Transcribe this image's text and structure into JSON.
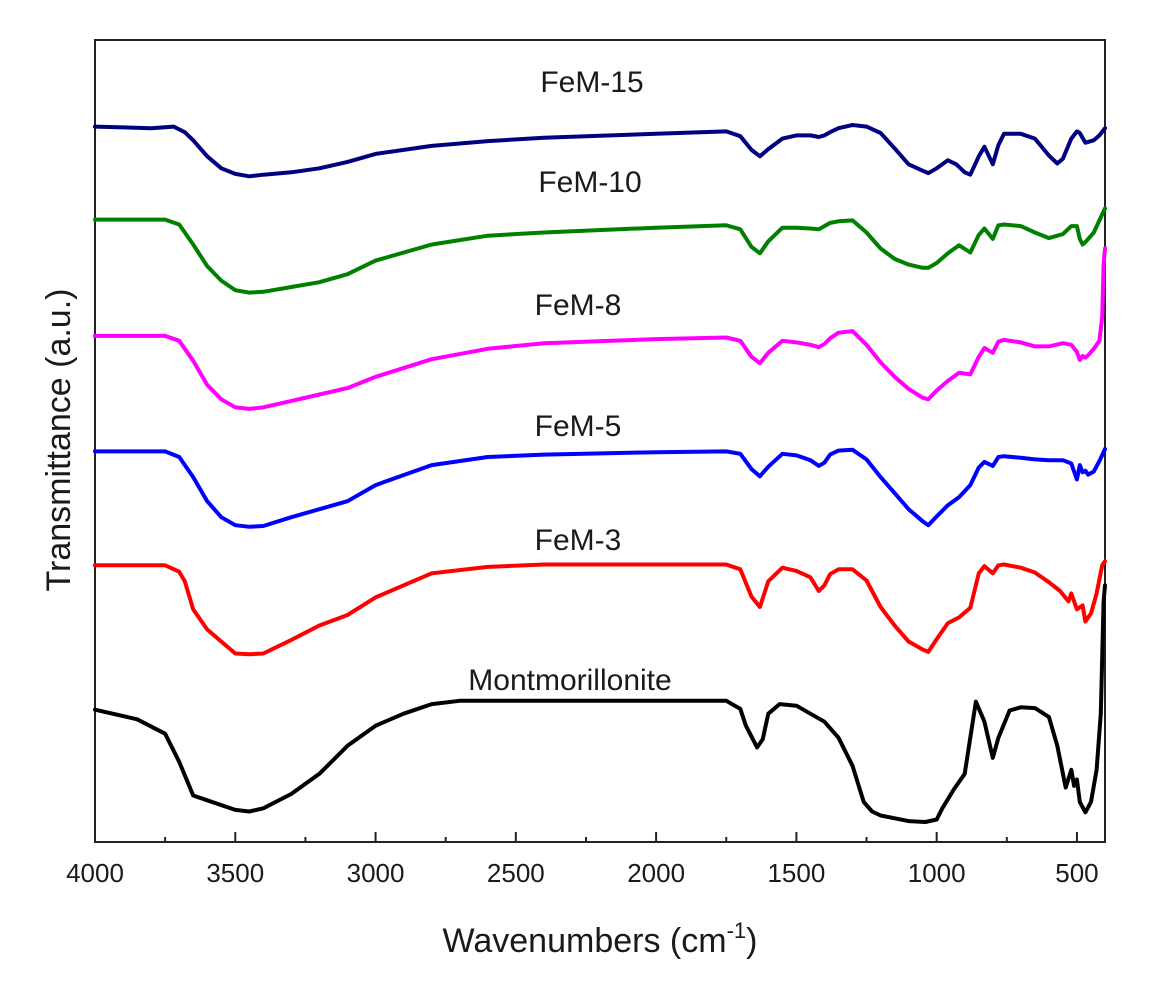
{
  "chart_data": {
    "type": "line",
    "title": "",
    "xlabel": "Wavenumbers (cm",
    "xlabel_sup": "-1",
    "xlabel_close": ")",
    "ylabel": "Transmittance (a.u.)",
    "xlim": [
      4000,
      400
    ],
    "ylim": [
      0,
      100
    ],
    "x_ticks": [
      4000,
      3500,
      3000,
      2500,
      2000,
      1500,
      1000,
      500
    ],
    "x_tick_labels": [
      "4000",
      "3500",
      "3000",
      "2500",
      "2000",
      "1500",
      "1000",
      "500"
    ],
    "x_minor_ticks": [
      3750,
      3250,
      2750,
      2250,
      1750,
      1250,
      750
    ],
    "grid": false,
    "series": [
      {
        "name": "Montmorillonite",
        "color": "#000000",
        "x": [
          4000,
          3850,
          3750,
          3700,
          3650,
          3600,
          3500,
          3450,
          3400,
          3300,
          3200,
          3100,
          3000,
          2900,
          2800,
          2700,
          2500,
          2000,
          1750,
          1700,
          1680,
          1640,
          1620,
          1600,
          1560,
          1500,
          1400,
          1350,
          1300,
          1260,
          1230,
          1200,
          1100,
          1040,
          1000,
          980,
          940,
          900,
          860,
          830,
          800,
          780,
          740,
          700,
          650,
          600,
          570,
          540,
          520,
          510,
          500,
          490,
          470,
          450,
          430,
          415,
          405,
          400
        ],
        "y": [
          16.5,
          15.3,
          13.5,
          10,
          5.8,
          5.2,
          4,
          3.8,
          4.2,
          6,
          8.5,
          12,
          14.5,
          16,
          17.2,
          17.6,
          17.6,
          17.6,
          17.6,
          16.6,
          14.5,
          11.8,
          12.8,
          16,
          17.2,
          17,
          15,
          13,
          9.5,
          5,
          3.8,
          3.3,
          2.6,
          2.5,
          2.8,
          4.2,
          6.5,
          8.5,
          17.5,
          15,
          10.5,
          13,
          16.4,
          16.8,
          16.7,
          15.6,
          12,
          6.8,
          9,
          7,
          7.8,
          5,
          3.7,
          5,
          9,
          16,
          30,
          32
        ]
      },
      {
        "name": "FeM-3",
        "color": "#ff0000",
        "x": [
          4000,
          3750,
          3700,
          3680,
          3650,
          3600,
          3500,
          3450,
          3400,
          3300,
          3200,
          3100,
          3000,
          2800,
          2600,
          2400,
          2000,
          1750,
          1700,
          1660,
          1630,
          1600,
          1550,
          1500,
          1450,
          1420,
          1400,
          1380,
          1350,
          1300,
          1250,
          1200,
          1150,
          1100,
          1050,
          1030,
          1000,
          960,
          920,
          880,
          850,
          830,
          800,
          780,
          760,
          700,
          650,
          600,
          560,
          530,
          520,
          500,
          480,
          470,
          450,
          430,
          410,
          400
        ],
        "y": [
          34.5,
          34.5,
          33.7,
          32.5,
          29,
          26.5,
          23.5,
          23.4,
          23.5,
          25.2,
          27,
          28.3,
          30.5,
          33.5,
          34.3,
          34.6,
          34.6,
          34.6,
          34,
          30.6,
          29.3,
          32.5,
          34.2,
          33.8,
          33,
          31.3,
          32,
          33.4,
          34,
          34,
          32.6,
          29.3,
          27,
          25,
          24,
          23.7,
          25.3,
          27.3,
          28,
          29.2,
          33.5,
          34.4,
          33.5,
          34.5,
          34.6,
          34.2,
          33.6,
          32.4,
          31.3,
          30,
          31,
          29,
          29.5,
          27.5,
          28.5,
          31,
          34.5,
          35
        ]
      },
      {
        "name": "FeM-5",
        "color": "#0000ff",
        "x": [
          4000,
          3750,
          3700,
          3650,
          3600,
          3550,
          3500,
          3450,
          3400,
          3300,
          3200,
          3100,
          3000,
          2800,
          2600,
          2400,
          2000,
          1750,
          1700,
          1660,
          1630,
          1600,
          1550,
          1500,
          1450,
          1420,
          1400,
          1380,
          1350,
          1300,
          1250,
          1200,
          1150,
          1100,
          1050,
          1030,
          1000,
          960,
          920,
          880,
          850,
          830,
          800,
          780,
          760,
          700,
          650,
          600,
          550,
          520,
          500,
          490,
          480,
          470,
          460,
          440,
          420,
          400
        ],
        "y": [
          48.7,
          48.7,
          48,
          45.5,
          42.5,
          40.5,
          39.5,
          39.3,
          39.4,
          40.5,
          41.5,
          42.5,
          44.5,
          47,
          48,
          48.3,
          48.6,
          48.7,
          48.4,
          46.5,
          45.6,
          46.8,
          48.4,
          48.2,
          47.6,
          46.9,
          47.3,
          48.3,
          48.8,
          48.9,
          47.7,
          45.5,
          43.5,
          41.5,
          40,
          39.5,
          40.6,
          42,
          43,
          44.5,
          46.7,
          47.4,
          46.9,
          48,
          48.1,
          47.9,
          47.7,
          47.6,
          47.6,
          47.2,
          45.2,
          47,
          46.1,
          46.3,
          45.8,
          46.2,
          47.5,
          49
        ]
      },
      {
        "name": "FeM-8",
        "color": "#ff00ff",
        "x": [
          4000,
          3750,
          3700,
          3650,
          3600,
          3550,
          3500,
          3450,
          3400,
          3300,
          3200,
          3100,
          3000,
          2800,
          2600,
          2400,
          2000,
          1750,
          1700,
          1660,
          1630,
          1600,
          1550,
          1500,
          1450,
          1420,
          1400,
          1380,
          1350,
          1300,
          1250,
          1200,
          1150,
          1100,
          1050,
          1030,
          1000,
          960,
          920,
          880,
          850,
          830,
          800,
          780,
          760,
          700,
          650,
          600,
          550,
          520,
          500,
          490,
          480,
          470,
          460,
          440,
          420,
          410,
          405,
          400
        ],
        "y": [
          63.1,
          63.1,
          62.5,
          60,
          57,
          55.2,
          54.2,
          54,
          54.2,
          55,
          55.8,
          56.6,
          58,
          60.2,
          61.5,
          62.2,
          62.7,
          62.9,
          62.5,
          60.5,
          59.7,
          61,
          62.5,
          62.3,
          62,
          61.7,
          62.1,
          62.8,
          63.5,
          63.7,
          62,
          59.8,
          58,
          56.5,
          55.4,
          55.2,
          56.3,
          57.5,
          58.5,
          58.3,
          60.5,
          61.6,
          61,
          62.4,
          62.6,
          62.3,
          61.8,
          61.8,
          62.2,
          62,
          61.1,
          60.1,
          60.6,
          60.4,
          60.7,
          61.5,
          62.5,
          65.5,
          72,
          74
        ]
      },
      {
        "name": "FeM-10",
        "color": "#008000",
        "x": [
          4000,
          3750,
          3700,
          3650,
          3600,
          3550,
          3500,
          3450,
          3400,
          3300,
          3200,
          3100,
          3000,
          2800,
          2600,
          2400,
          2000,
          1750,
          1700,
          1660,
          1630,
          1600,
          1550,
          1500,
          1450,
          1420,
          1400,
          1380,
          1350,
          1300,
          1250,
          1200,
          1150,
          1100,
          1050,
          1030,
          1000,
          960,
          920,
          880,
          850,
          830,
          800,
          780,
          760,
          700,
          650,
          600,
          550,
          520,
          500,
          490,
          480,
          470,
          460,
          440,
          420,
          400
        ],
        "y": [
          77.6,
          77.6,
          77,
          74.5,
          71.8,
          70,
          68.8,
          68.5,
          68.6,
          69.2,
          69.8,
          70.8,
          72.5,
          74.5,
          75.6,
          76,
          76.6,
          76.9,
          76.4,
          74.2,
          73.4,
          74.9,
          76.6,
          76.6,
          76.5,
          76.4,
          76.8,
          77.2,
          77.4,
          77.5,
          76,
          74,
          72.7,
          72,
          71.6,
          71.6,
          72.2,
          73.4,
          74.4,
          73.5,
          75.7,
          76.5,
          75.2,
          76.9,
          77,
          76.8,
          76,
          75.3,
          75.8,
          76.8,
          76.8,
          75.2,
          74.5,
          74.8,
          75.2,
          76,
          77.5,
          79
        ]
      },
      {
        "name": "FeM-15",
        "color": "#000080",
        "x": [
          4000,
          3800,
          3720,
          3680,
          3650,
          3600,
          3550,
          3500,
          3450,
          3400,
          3300,
          3200,
          3100,
          3000,
          2800,
          2600,
          2400,
          2000,
          1750,
          1700,
          1660,
          1630,
          1600,
          1550,
          1500,
          1450,
          1420,
          1400,
          1380,
          1350,
          1300,
          1250,
          1200,
          1150,
          1100,
          1050,
          1030,
          1000,
          960,
          930,
          900,
          880,
          850,
          830,
          800,
          780,
          760,
          700,
          650,
          600,
          570,
          550,
          520,
          500,
          490,
          470,
          440,
          420,
          400
        ],
        "y": [
          89.2,
          89,
          89.2,
          88.5,
          87.5,
          85.5,
          84,
          83.3,
          83,
          83.2,
          83.5,
          84,
          84.8,
          85.8,
          86.8,
          87.4,
          87.8,
          88.3,
          88.6,
          88,
          86.3,
          85.5,
          86.4,
          87.7,
          88.1,
          88.1,
          87.9,
          88.1,
          88.5,
          89,
          89.4,
          89.2,
          88.4,
          86.5,
          84.5,
          83.7,
          83.4,
          84,
          85,
          84.5,
          83.5,
          83.2,
          85.5,
          86.7,
          84.5,
          86.9,
          88.3,
          88.3,
          87.7,
          85.6,
          84.6,
          85.2,
          87.7,
          88.6,
          88.4,
          87.2,
          87.5,
          88.1,
          89
        ]
      }
    ],
    "series_labels": [
      {
        "text": "FeM-15",
        "series": "FeM-15"
      },
      {
        "text": "FeM-10",
        "series": "FeM-10"
      },
      {
        "text": "FeM-8",
        "series": "FeM-8"
      },
      {
        "text": "FeM-5",
        "series": "FeM-5"
      },
      {
        "text": "FeM-3",
        "series": "FeM-3"
      },
      {
        "text": "Montmorillonite",
        "series": "Montmorillonite"
      }
    ]
  }
}
